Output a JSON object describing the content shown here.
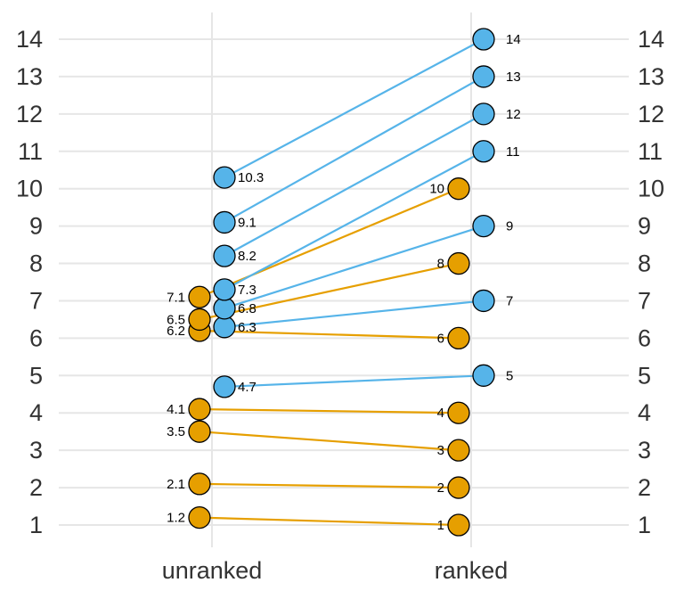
{
  "chart_data": {
    "type": "scatter",
    "title": "",
    "xlabel": "",
    "ylabel": "",
    "categories": [
      "unranked",
      "ranked"
    ],
    "ylim": [
      0.6,
      14.6
    ],
    "yticks": [
      1,
      2,
      3,
      4,
      5,
      6,
      7,
      8,
      9,
      10,
      11,
      12,
      13,
      14
    ],
    "grid": true,
    "legend": "none",
    "colors": {
      "orange": "#E69F00",
      "blue": "#56B4E9"
    },
    "series": [
      {
        "color": "orange",
        "pairs": [
          {
            "unranked": 1.2,
            "ranked": 1,
            "unranked_label": "1.2",
            "ranked_label": "1"
          },
          {
            "unranked": 2.1,
            "ranked": 2,
            "unranked_label": "2.1",
            "ranked_label": "2"
          },
          {
            "unranked": 3.5,
            "ranked": 3,
            "unranked_label": "3.5",
            "ranked_label": "3"
          },
          {
            "unranked": 4.1,
            "ranked": 4,
            "unranked_label": "4.1",
            "ranked_label": "4"
          },
          {
            "unranked": 6.2,
            "ranked": 6,
            "unranked_label": "6.2",
            "ranked_label": "6"
          },
          {
            "unranked": 6.5,
            "ranked": 8,
            "unranked_label": "6.5",
            "ranked_label": "8"
          },
          {
            "unranked": 7.1,
            "ranked": 10,
            "unranked_label": "7.1",
            "ranked_label": "10"
          }
        ]
      },
      {
        "color": "blue",
        "pairs": [
          {
            "unranked": 4.7,
            "ranked": 5,
            "unranked_label": "4.7",
            "ranked_label": "5"
          },
          {
            "unranked": 6.3,
            "ranked": 7,
            "unranked_label": "6.3",
            "ranked_label": "7"
          },
          {
            "unranked": 6.8,
            "ranked": 9,
            "unranked_label": "6.8",
            "ranked_label": "9"
          },
          {
            "unranked": 7.3,
            "ranked": 11,
            "unranked_label": "7.3",
            "ranked_label": "11"
          },
          {
            "unranked": 8.2,
            "ranked": 12,
            "unranked_label": "8.2",
            "ranked_label": "12"
          },
          {
            "unranked": 9.1,
            "ranked": 13,
            "unranked_label": "9.1",
            "ranked_label": "13"
          },
          {
            "unranked": 10.3,
            "ranked": 14,
            "unranked_label": "10.3",
            "ranked_label": "14"
          }
        ]
      }
    ]
  }
}
